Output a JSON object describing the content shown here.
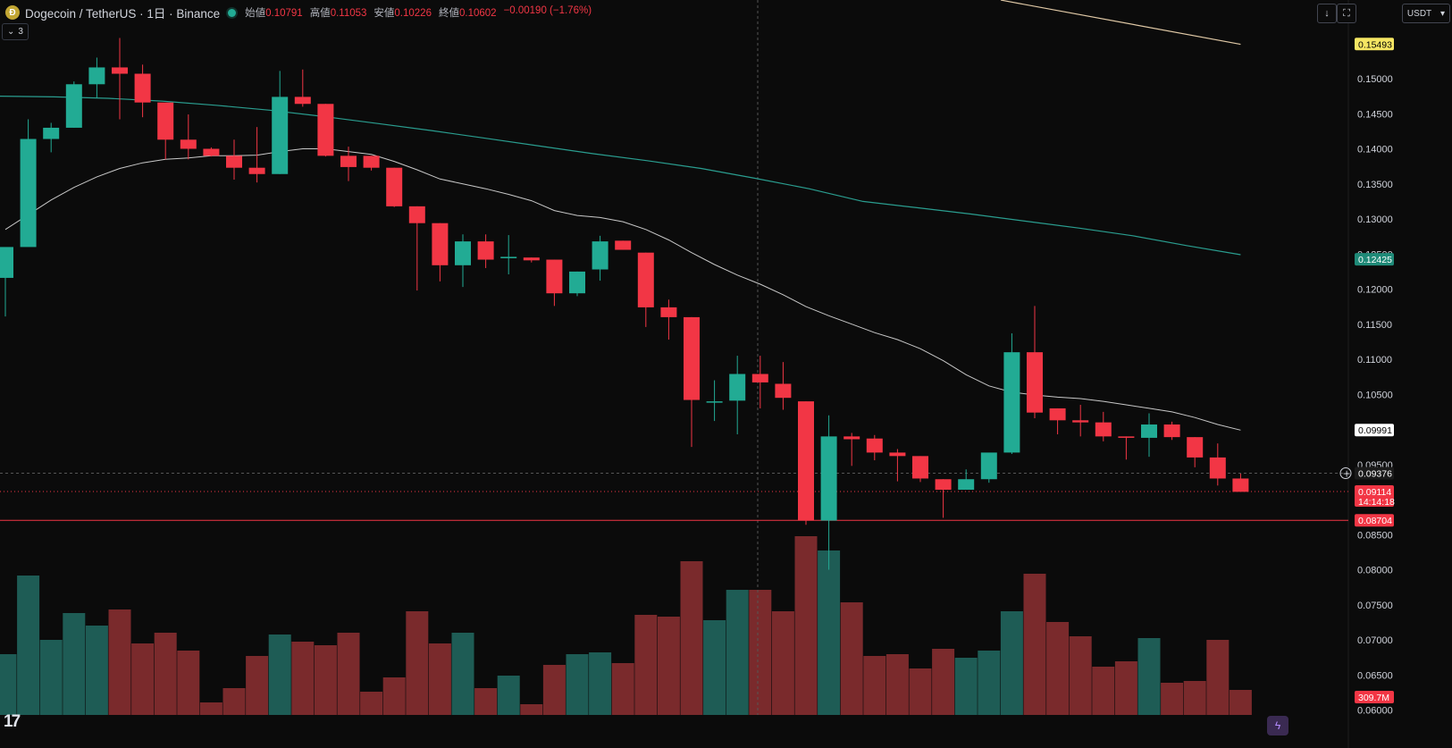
{
  "header": {
    "title": "Dogecoin / TetherUS · 1日 · Binance",
    "ohlc": [
      {
        "label": "始値",
        "value": "0.10791"
      },
      {
        "label": "高値",
        "value": "0.11053"
      },
      {
        "label": "安値",
        "value": "0.10226"
      },
      {
        "label": "終値",
        "value": "0.10602"
      },
      {
        "label": "",
        "value": "−0.00190 (−1.76%)"
      }
    ],
    "collapse_count": "3",
    "unit": "USDT"
  },
  "colors": {
    "up": "#22ab94",
    "down": "#f23645",
    "vol_up": "#1e5c55",
    "vol_down": "#7a2a2c",
    "ma_short": "#c8c8c8",
    "ma_long": "#2a9d8f",
    "ma_top": "#e0c9a6",
    "bg": "#0b0b0b"
  },
  "chart_data": {
    "type": "candlestick",
    "yaxis": {
      "ticks": [
        "0.15000",
        "0.14500",
        "0.14000",
        "0.13500",
        "0.13000",
        "0.12500",
        "0.12000",
        "0.11500",
        "0.11000",
        "0.10500",
        "0.09500",
        "0.08500",
        "0.08000",
        "0.07500",
        "0.07000",
        "0.06500",
        "0.06000"
      ]
    },
    "candles": [
      {
        "o": 0.1216,
        "h": 0.1258,
        "l": 0.1161,
        "c": 0.126
      },
      {
        "o": 0.126,
        "h": 0.1442,
        "l": 0.1261,
        "c": 0.1414
      },
      {
        "o": 0.1414,
        "h": 0.1437,
        "l": 0.1395,
        "c": 0.143
      },
      {
        "o": 0.143,
        "h": 0.1496,
        "l": 0.143,
        "c": 0.1492
      },
      {
        "o": 0.1492,
        "h": 0.153,
        "l": 0.1472,
        "c": 0.1516
      },
      {
        "o": 0.1516,
        "h": 0.1558,
        "l": 0.1442,
        "c": 0.1507
      },
      {
        "o": 0.1507,
        "h": 0.152,
        "l": 0.1445,
        "c": 0.1466
      },
      {
        "o": 0.1466,
        "h": 0.1463,
        "l": 0.1385,
        "c": 0.1413
      },
      {
        "o": 0.1413,
        "h": 0.1449,
        "l": 0.1385,
        "c": 0.14
      },
      {
        "o": 0.14,
        "h": 0.1402,
        "l": 0.1389,
        "c": 0.139
      },
      {
        "o": 0.139,
        "h": 0.1413,
        "l": 0.1356,
        "c": 0.1373
      },
      {
        "o": 0.1373,
        "h": 0.1431,
        "l": 0.1352,
        "c": 0.1364
      },
      {
        "o": 0.1364,
        "h": 0.1511,
        "l": 0.1364,
        "c": 0.1474
      },
      {
        "o": 0.1474,
        "h": 0.1513,
        "l": 0.146,
        "c": 0.1464
      },
      {
        "o": 0.1464,
        "h": 0.1464,
        "l": 0.1389,
        "c": 0.139
      },
      {
        "o": 0.139,
        "h": 0.1403,
        "l": 0.1354,
        "c": 0.1374
      },
      {
        "o": 0.139,
        "h": 0.139,
        "l": 0.1369,
        "c": 0.1373
      },
      {
        "o": 0.1373,
        "h": 0.1373,
        "l": 0.1317,
        "c": 0.1318
      },
      {
        "o": 0.1318,
        "h": 0.1318,
        "l": 0.1198,
        "c": 0.1294
      },
      {
        "o": 0.1294,
        "h": 0.1294,
        "l": 0.1211,
        "c": 0.1234
      },
      {
        "o": 0.1234,
        "h": 0.1278,
        "l": 0.1203,
        "c": 0.1268
      },
      {
        "o": 0.1268,
        "h": 0.1278,
        "l": 0.123,
        "c": 0.1242
      },
      {
        "o": 0.1244,
        "h": 0.1277,
        "l": 0.1221,
        "c": 0.1246
      },
      {
        "o": 0.1245,
        "h": 0.1245,
        "l": 0.1238,
        "c": 0.1241
      },
      {
        "o": 0.1242,
        "h": 0.1242,
        "l": 0.1176,
        "c": 0.1194
      },
      {
        "o": 0.1194,
        "h": 0.1225,
        "l": 0.119,
        "c": 0.1225
      },
      {
        "o": 0.1228,
        "h": 0.1276,
        "l": 0.1212,
        "c": 0.1268
      },
      {
        "o": 0.1269,
        "h": 0.1269,
        "l": 0.1256,
        "c": 0.1256
      },
      {
        "o": 0.1252,
        "h": 0.1252,
        "l": 0.1146,
        "c": 0.1174
      },
      {
        "o": 0.1174,
        "h": 0.1185,
        "l": 0.1128,
        "c": 0.116
      },
      {
        "o": 0.116,
        "h": 0.116,
        "l": 0.0975,
        "c": 0.1042
      },
      {
        "o": 0.104,
        "h": 0.107,
        "l": 0.1012,
        "c": 0.104
      },
      {
        "o": 0.1041,
        "h": 0.1105,
        "l": 0.0993,
        "c": 0.1079
      },
      {
        "o": 0.1079,
        "h": 0.1105,
        "l": 0.103,
        "c": 0.1067
      },
      {
        "o": 0.1065,
        "h": 0.1096,
        "l": 0.1028,
        "c": 0.1045
      },
      {
        "o": 0.104,
        "h": 0.104,
        "l": 0.0864,
        "c": 0.087
      },
      {
        "o": 0.087,
        "h": 0.102,
        "l": 0.08,
        "c": 0.099
      },
      {
        "o": 0.099,
        "h": 0.0995,
        "l": 0.0948,
        "c": 0.0986
      },
      {
        "o": 0.0987,
        "h": 0.0992,
        "l": 0.0956,
        "c": 0.0967
      },
      {
        "o": 0.0967,
        "h": 0.0972,
        "l": 0.0926,
        "c": 0.0962
      },
      {
        "o": 0.0962,
        "h": 0.0962,
        "l": 0.0925,
        "c": 0.093
      },
      {
        "o": 0.0929,
        "h": 0.0929,
        "l": 0.0874,
        "c": 0.0914
      },
      {
        "o": 0.0914,
        "h": 0.0943,
        "l": 0.0914,
        "c": 0.0929
      },
      {
        "o": 0.0929,
        "h": 0.0966,
        "l": 0.0924,
        "c": 0.0967
      },
      {
        "o": 0.0967,
        "h": 0.1137,
        "l": 0.0965,
        "c": 0.111
      },
      {
        "o": 0.111,
        "h": 0.1176,
        "l": 0.1016,
        "c": 0.1024
      },
      {
        "o": 0.103,
        "h": 0.103,
        "l": 0.0993,
        "c": 0.1013
      },
      {
        "o": 0.1013,
        "h": 0.1035,
        "l": 0.099,
        "c": 0.101
      },
      {
        "o": 0.101,
        "h": 0.1025,
        "l": 0.0983,
        "c": 0.099
      },
      {
        "o": 0.099,
        "h": 0.099,
        "l": 0.0957,
        "c": 0.0988
      },
      {
        "o": 0.0988,
        "h": 0.1023,
        "l": 0.0961,
        "c": 0.1007
      },
      {
        "o": 0.1007,
        "h": 0.1011,
        "l": 0.0985,
        "c": 0.0989
      },
      {
        "o": 0.0989,
        "h": 0.0989,
        "l": 0.0946,
        "c": 0.096
      },
      {
        "o": 0.096,
        "h": 0.098,
        "l": 0.092,
        "c": 0.093
      },
      {
        "o": 0.093,
        "h": 0.0937,
        "l": 0.0913,
        "c": 0.0911
      }
    ],
    "volume_relative": [
      0.34,
      0.78,
      0.42,
      0.57,
      0.5,
      0.59,
      0.4,
      0.46,
      0.36,
      0.07,
      0.15,
      0.33,
      0.45,
      0.41,
      0.39,
      0.46,
      0.13,
      0.21,
      0.58,
      0.4,
      0.46,
      0.15,
      0.22,
      0.06,
      0.28,
      0.34,
      0.35,
      0.29,
      0.56,
      0.55,
      0.86,
      0.53,
      0.7,
      0.7,
      0.58,
      1.0,
      0.92,
      0.63,
      0.33,
      0.34,
      0.26,
      0.37,
      0.32,
      0.36,
      0.58,
      0.79,
      0.52,
      0.44,
      0.27,
      0.3,
      0.43,
      0.18,
      0.19,
      0.42,
      0.14
    ],
    "moving_average_short": [
      0.1285,
      0.1306,
      0.1327,
      0.1345,
      0.136,
      0.1372,
      0.138,
      0.1385,
      0.1387,
      0.139,
      0.139,
      0.1391,
      0.1396,
      0.14,
      0.14,
      0.1396,
      0.1392,
      0.1382,
      0.137,
      0.1357,
      0.135,
      0.1343,
      0.1335,
      0.1326,
      0.1312,
      0.1305,
      0.1302,
      0.1296,
      0.1285,
      0.127,
      0.1252,
      0.1235,
      0.122,
      0.1207,
      0.1192,
      0.1175,
      0.1162,
      0.115,
      0.1138,
      0.1128,
      0.1115,
      0.1098,
      0.1078,
      0.1062,
      0.1053,
      0.1049,
      0.1046,
      0.1044,
      0.104,
      0.1035,
      0.103,
      0.1025,
      0.1017,
      0.1007,
      0.0999
    ],
    "moving_average_long_from_left": [
      0.1475,
      0.1474,
      0.1472,
      0.1468,
      0.1462,
      0.1455,
      0.1446,
      0.1436,
      0.1426,
      0.1415,
      0.1404,
      0.1393,
      0.1383,
      0.1372,
      0.1358,
      0.1343,
      0.1325,
      0.1316,
      0.1307,
      0.1297,
      0.1287,
      0.1276,
      0.1262,
      0.1249
    ],
    "top_line": {
      "from": 0.1612,
      "to": 0.1549
    },
    "price_labels": [
      {
        "text": "0.15493",
        "value": 0.15493,
        "role": "top-line"
      },
      {
        "text": "0.12425",
        "value": 0.12425,
        "role": "long-ma"
      },
      {
        "text": "0.09991",
        "value": 0.09991,
        "role": "short-ma"
      },
      {
        "text": "0.09376",
        "value": 0.09376,
        "role": "crosshair"
      },
      {
        "text": "0.09114",
        "value": 0.09114,
        "role": "last-price",
        "sub": "14:14:18"
      },
      {
        "text": "0.08704",
        "value": 0.08704,
        "role": "support-line"
      }
    ],
    "volume_label": "309.7M",
    "legend": "top-left"
  }
}
